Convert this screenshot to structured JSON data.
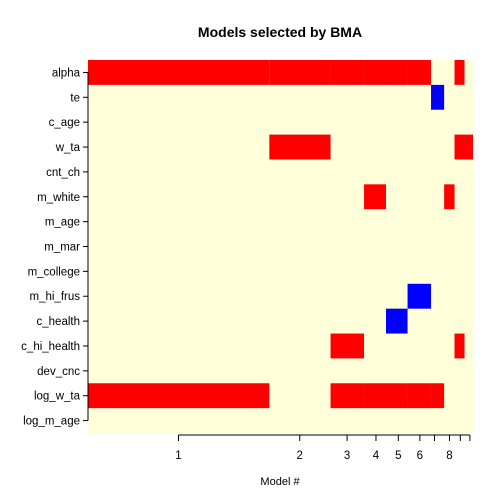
{
  "chart_data": {
    "type": "heatmap",
    "title": "Models selected by BMA",
    "xlabel": "Model #",
    "ylabel": "",
    "x_scale": "cumulative-posterior-probability",
    "x_tick_labels": [
      {
        "label": "1",
        "position": 0.235
      },
      {
        "label": "2",
        "position": 0.55
      },
      {
        "label": "3",
        "position": 0.673
      },
      {
        "label": "4",
        "position": 0.748
      },
      {
        "label": "5",
        "position": 0.806
      },
      {
        "label": "6",
        "position": 0.862
      },
      {
        "label": "8",
        "position": 0.939
      }
    ],
    "x_minor_ticks": [
      0.9,
      0.967,
      0.992
    ],
    "variables": [
      "alpha",
      "te",
      "c_age",
      "w_ta",
      "cnt_ch",
      "m_white",
      "m_age",
      "m_mar",
      "m_college",
      "m_hi_frus",
      "c_health",
      "c_hi_health",
      "dev_cnc",
      "log_w_ta",
      "log_m_age"
    ],
    "models": [
      {
        "model": 1,
        "start": 0.0,
        "end": 0.471
      },
      {
        "model": 2,
        "start": 0.471,
        "end": 0.63
      },
      {
        "model": 3,
        "start": 0.63,
        "end": 0.717
      },
      {
        "model": 4,
        "start": 0.717,
        "end": 0.774
      },
      {
        "model": 5,
        "start": 0.774,
        "end": 0.83
      },
      {
        "model": 6,
        "start": 0.83,
        "end": 0.891
      },
      {
        "model": 7,
        "start": 0.891,
        "end": 0.925
      },
      {
        "model": 8,
        "start": 0.925,
        "end": 0.952
      },
      {
        "model": 9,
        "start": 0.952,
        "end": 0.978
      },
      {
        "model": 10,
        "start": 0.978,
        "end": 1.0
      }
    ],
    "cells": [
      {
        "variable": "alpha",
        "model": 1,
        "sign": "positive"
      },
      {
        "variable": "alpha",
        "model": 2,
        "sign": "positive"
      },
      {
        "variable": "alpha",
        "model": 3,
        "sign": "positive"
      },
      {
        "variable": "alpha",
        "model": 4,
        "sign": "positive"
      },
      {
        "variable": "alpha",
        "model": 5,
        "sign": "positive"
      },
      {
        "variable": "alpha",
        "model": 6,
        "sign": "positive"
      },
      {
        "variable": "alpha",
        "model": 9,
        "sign": "positive"
      },
      {
        "variable": "te",
        "model": 7,
        "sign": "negative"
      },
      {
        "variable": "w_ta",
        "model": 2,
        "sign": "positive"
      },
      {
        "variable": "w_ta",
        "model": 9,
        "sign": "positive"
      },
      {
        "variable": "w_ta",
        "model": 10,
        "sign": "positive"
      },
      {
        "variable": "m_white",
        "model": 4,
        "sign": "positive"
      },
      {
        "variable": "m_white",
        "model": 8,
        "sign": "positive"
      },
      {
        "variable": "m_hi_frus",
        "model": 6,
        "sign": "negative"
      },
      {
        "variable": "c_health",
        "model": 5,
        "sign": "negative"
      },
      {
        "variable": "c_hi_health",
        "model": 3,
        "sign": "positive"
      },
      {
        "variable": "c_hi_health",
        "model": 9,
        "sign": "positive"
      },
      {
        "variable": "log_w_ta",
        "model": 1,
        "sign": "positive"
      },
      {
        "variable": "log_w_ta",
        "model": 3,
        "sign": "positive"
      },
      {
        "variable": "log_w_ta",
        "model": 4,
        "sign": "positive"
      },
      {
        "variable": "log_w_ta",
        "model": 5,
        "sign": "positive"
      },
      {
        "variable": "log_w_ta",
        "model": 6,
        "sign": "positive"
      },
      {
        "variable": "log_w_ta",
        "model": 7,
        "sign": "positive"
      }
    ],
    "colors": {
      "positive": "#ff0000",
      "negative": "#0000ff",
      "excluded": "#ffffd9",
      "axis": "#000000"
    },
    "grid": false,
    "legend": "none"
  }
}
